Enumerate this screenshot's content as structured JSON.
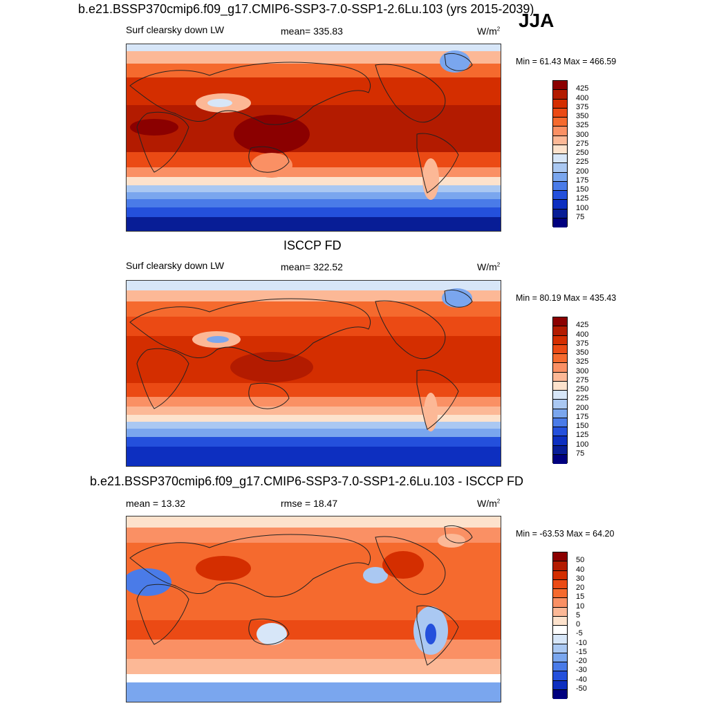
{
  "season": "JJA",
  "chart_data": [
    {
      "type": "heatmap",
      "title": "b.e21.BSSP370cmip6.f09_g17.CMIP6-SSP3-7.0-SSP1-2.6Lu.103 (yrs 2015-2039)",
      "left_label": "Surf clearsky down LW",
      "center_label": "mean= 335.83",
      "units": "W/m",
      "units_sup": "2",
      "minmax": "Min =  61.43 Max = 466.59",
      "colorbar": {
        "levels": [
          "425",
          "400",
          "375",
          "350",
          "325",
          "300",
          "275",
          "250",
          "225",
          "200",
          "175",
          "150",
          "125",
          "100",
          "75"
        ],
        "colors": [
          "#8b0000",
          "#b31b00",
          "#d42e00",
          "#eb4a14",
          "#f56a2e",
          "#fa9064",
          "#fcb896",
          "#fde2cc",
          "#d7e6f8",
          "#aac8f2",
          "#7aa6ee",
          "#4a7be8",
          "#2450dc",
          "#0d2fc0",
          "#081d96",
          "#00007f"
        ]
      }
    },
    {
      "type": "heatmap",
      "title": "ISCCP FD",
      "left_label": "Surf clearsky down LW",
      "center_label": "mean= 322.52",
      "units": "W/m",
      "units_sup": "2",
      "minmax": "Min =  80.19 Max = 435.43",
      "colorbar": {
        "levels": [
          "425",
          "400",
          "375",
          "350",
          "325",
          "300",
          "275",
          "250",
          "225",
          "200",
          "175",
          "150",
          "125",
          "100",
          "75"
        ],
        "colors": [
          "#8b0000",
          "#b31b00",
          "#d42e00",
          "#eb4a14",
          "#f56a2e",
          "#fa9064",
          "#fcb896",
          "#fde2cc",
          "#d7e6f8",
          "#aac8f2",
          "#7aa6ee",
          "#4a7be8",
          "#2450dc",
          "#0d2fc0",
          "#081d96",
          "#00007f"
        ]
      }
    },
    {
      "type": "heatmap",
      "title": "b.e21.BSSP370cmip6.f09_g17.CMIP6-SSP3-7.0-SSP1-2.6Lu.103 - ISCCP FD",
      "left_label": "mean =  13.32",
      "center_label": "rmse =  18.47",
      "units": "W/m",
      "units_sup": "2",
      "minmax": "Min = -63.53 Max =  64.20",
      "colorbar": {
        "levels": [
          "50",
          "40",
          "30",
          "20",
          "15",
          "10",
          "5",
          "0",
          "-5",
          "-10",
          "-15",
          "-20",
          "-30",
          "-40",
          "-50"
        ],
        "colors": [
          "#8b0000",
          "#b31b00",
          "#d42e00",
          "#eb4a14",
          "#f56a2e",
          "#fa9064",
          "#fcb896",
          "#fde2cc",
          "#ffffff",
          "#d7e6f8",
          "#aac8f2",
          "#7aa6ee",
          "#4a7be8",
          "#2450dc",
          "#0d2fc0",
          "#00007f"
        ]
      }
    }
  ]
}
